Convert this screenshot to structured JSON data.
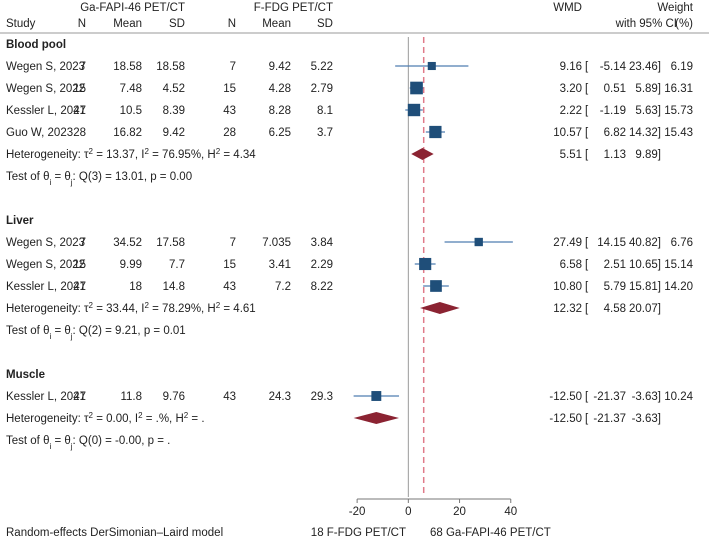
{
  "chart_data": {
    "type": "forest",
    "model_note": "Random-effects DerSimonian–Laird model",
    "effect_label": "WMD",
    "ci_label": "with 95% CI",
    "weight_label": "Weight",
    "weight_unit": "(%)",
    "group_labels": {
      "a": "Ga-FAPI-46 PET/CT",
      "b": "F-FDG PET/CT"
    },
    "column_headers": [
      "Study",
      "N",
      "Mean",
      "SD",
      "N",
      "Mean",
      "SD"
    ],
    "xaxis": {
      "ticks": [
        -20,
        0,
        20,
        40
      ],
      "tick_labels": [
        "-20",
        "0",
        "20",
        "40"
      ],
      "range": [
        -22,
        44
      ],
      "left_label": "18 F-FDG PET/CT",
      "right_label": "68 Ga-FAPI-46 PET/CT",
      "null_line": 0,
      "overall_dashed_line": 6.0
    },
    "colors": {
      "square": "#1f4e79",
      "diamond": "#8b2332",
      "ci_line": "#4f7db0",
      "dashed": "#e07a8a",
      "axis": "#777777"
    },
    "groups": [
      {
        "name": "Blood pool",
        "studies": [
          {
            "study": "Wegen S, 2023",
            "n1": "7",
            "mean1": "18.58",
            "sd1": "18.58",
            "n2": "7",
            "mean2": "9.42",
            "sd2": "5.22",
            "wmd": 9.16,
            "lo": -5.14,
            "hi": 23.46,
            "wmd_text": "9.16",
            "lo_text": "-5.14",
            "hi_text": "23.46",
            "weight": "6.19"
          },
          {
            "study": "Wegen S, 2022",
            "n1": "15",
            "mean1": "7.48",
            "sd1": "4.52",
            "n2": "15",
            "mean2": "4.28",
            "sd2": "2.79",
            "wmd": 3.2,
            "lo": 0.51,
            "hi": 5.89,
            "wmd_text": "3.20",
            "lo_text": "0.51",
            "hi_text": "5.89",
            "weight": "16.31"
          },
          {
            "study": "Kessler L, 2021",
            "n1": "47",
            "mean1": "10.5",
            "sd1": "8.39",
            "n2": "43",
            "mean2": "8.28",
            "sd2": "8.1",
            "wmd": 2.22,
            "lo": -1.19,
            "hi": 5.63,
            "wmd_text": "2.22",
            "lo_text": "-1.19",
            "hi_text": "5.63",
            "weight": "15.73"
          },
          {
            "study": "Guo W, 2023",
            "n1": "28",
            "mean1": "16.82",
            "sd1": "9.42",
            "n2": "28",
            "mean2": "6.25",
            "sd2": "3.7",
            "wmd": 10.57,
            "lo": 6.82,
            "hi": 14.32,
            "wmd_text": "10.57",
            "lo_text": "6.82",
            "hi_text": "14.32",
            "weight": "15.43"
          }
        ],
        "pooled": {
          "wmd": 5.51,
          "lo": 1.13,
          "hi": 9.89,
          "wmd_text": "5.51",
          "lo_text": "1.13",
          "hi_text": "9.89"
        },
        "heterogeneity": {
          "tau2": "13.37",
          "i2": "76.95%",
          "h2": "4.34"
        },
        "test": {
          "df": "3",
          "q": "13.01",
          "p": "0.00"
        }
      },
      {
        "name": "Liver",
        "studies": [
          {
            "study": "Wegen S, 2023",
            "n1": "7",
            "mean1": "34.52",
            "sd1": "17.58",
            "n2": "7",
            "mean2": "7.035",
            "sd2": "3.84",
            "wmd": 27.49,
            "lo": 14.15,
            "hi": 40.82,
            "wmd_text": "27.49",
            "lo_text": "14.15",
            "hi_text": "40.82",
            "weight": "6.76"
          },
          {
            "study": "Wegen S, 2022",
            "n1": "15",
            "mean1": "9.99",
            "sd1": "7.7",
            "n2": "15",
            "mean2": "3.41",
            "sd2": "2.29",
            "wmd": 6.58,
            "lo": 2.51,
            "hi": 10.65,
            "wmd_text": "6.58",
            "lo_text": "2.51",
            "hi_text": "10.65",
            "weight": "15.14"
          },
          {
            "study": "Kessler L, 2021",
            "n1": "47",
            "mean1": "18",
            "sd1": "14.8",
            "n2": "43",
            "mean2": "7.2",
            "sd2": "8.22",
            "wmd": 10.8,
            "lo": 5.79,
            "hi": 15.81,
            "wmd_text": "10.80",
            "lo_text": "5.79",
            "hi_text": "15.81",
            "weight": "14.20"
          }
        ],
        "pooled": {
          "wmd": 12.32,
          "lo": 4.58,
          "hi": 20.07,
          "wmd_text": "12.32",
          "lo_text": "4.58",
          "hi_text": "20.07"
        },
        "heterogeneity": {
          "tau2": "33.44",
          "i2": "78.29%",
          "h2": "4.61"
        },
        "test": {
          "df": "2",
          "q": "9.21",
          "p": "0.01"
        }
      },
      {
        "name": "Muscle",
        "studies": [
          {
            "study": "Kessler L, 2021",
            "n1": "47",
            "mean1": "11.8",
            "sd1": "9.76",
            "n2": "43",
            "mean2": "24.3",
            "sd2": "29.3",
            "wmd": -12.5,
            "lo": -21.37,
            "hi": -3.63,
            "wmd_text": "-12.50",
            "lo_text": "-21.37",
            "hi_text": "-3.63",
            "weight": "10.24"
          }
        ],
        "pooled": {
          "wmd": -12.5,
          "lo": -21.37,
          "hi": -3.63,
          "wmd_text": "-12.50",
          "lo_text": "-21.37",
          "hi_text": "-3.63"
        },
        "heterogeneity": {
          "tau2": "0.00",
          "i2": ".%",
          "h2": "."
        },
        "test": {
          "df": "0",
          "q": "-0.00",
          "p": "."
        }
      }
    ]
  }
}
